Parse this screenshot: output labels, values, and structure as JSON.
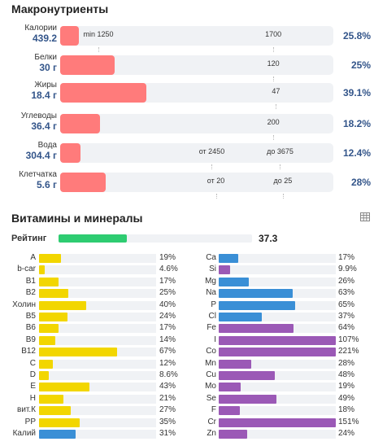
{
  "colors": {
    "macro_fill": "#ff7b7b",
    "rating_fill": "#2ecc71",
    "vitamin_fill": "#f2d600",
    "mineral_fill": "#3a8fd6",
    "trace_fill": "#9b59b6",
    "amount_text": "#33558a"
  },
  "macros": {
    "title": "Макронутриенты",
    "rows": [
      {
        "name": "Калории",
        "amount": "439.2",
        "fill_fraction": 0.068,
        "pct": "25.8%",
        "marks": [
          {
            "text": "min 1250",
            "pos": 0.14
          },
          {
            "text": "1700",
            "pos": 0.78
          }
        ]
      },
      {
        "name": "Белки",
        "amount": "30 г",
        "fill_fraction": 0.2,
        "pct": "25%",
        "marks": [
          {
            "text": "120",
            "pos": 0.78
          }
        ]
      },
      {
        "name": "Жиры",
        "amount": "18.4 г",
        "fill_fraction": 0.315,
        "pct": "39.1%",
        "marks": [
          {
            "text": "47",
            "pos": 0.79
          }
        ]
      },
      {
        "name": "Углеводы",
        "amount": "36.4 г",
        "fill_fraction": 0.145,
        "pct": "18.2%",
        "marks": [
          {
            "text": "200",
            "pos": 0.78
          }
        ]
      },
      {
        "name": "Вода",
        "amount": "304.4 г",
        "fill_fraction": 0.075,
        "pct": "12.4%",
        "marks": [
          {
            "text": "от 2450",
            "pos": 0.555
          },
          {
            "text": "до 3675",
            "pos": 0.805
          }
        ]
      },
      {
        "name": "Клетчатка",
        "amount": "5.6 г",
        "fill_fraction": 0.168,
        "pct": "28%",
        "marks": [
          {
            "text": "от 20",
            "pos": 0.57
          },
          {
            "text": "до 25",
            "pos": 0.815
          }
        ]
      }
    ]
  },
  "vitamins_minerals": {
    "title": "Витамины и минералы",
    "table_icon": "table-icon",
    "rating_label": "Рейтинг",
    "rating_value": "37.3",
    "rating_fraction": 0.373,
    "left": [
      {
        "label": "A",
        "pct": "19%",
        "value": 0.19,
        "kind": "vitamin"
      },
      {
        "label": "b-car",
        "pct": "4.6%",
        "value": 0.046,
        "kind": "vitamin"
      },
      {
        "label": "B1",
        "pct": "17%",
        "value": 0.17,
        "kind": "vitamin"
      },
      {
        "label": "B2",
        "pct": "25%",
        "value": 0.25,
        "kind": "vitamin"
      },
      {
        "label": "Холин",
        "pct": "40%",
        "value": 0.4,
        "kind": "vitamin"
      },
      {
        "label": "B5",
        "pct": "24%",
        "value": 0.24,
        "kind": "vitamin"
      },
      {
        "label": "B6",
        "pct": "17%",
        "value": 0.17,
        "kind": "vitamin"
      },
      {
        "label": "B9",
        "pct": "14%",
        "value": 0.14,
        "kind": "vitamin"
      },
      {
        "label": "B12",
        "pct": "67%",
        "value": 0.67,
        "kind": "vitamin"
      },
      {
        "label": "C",
        "pct": "12%",
        "value": 0.12,
        "kind": "vitamin"
      },
      {
        "label": "D",
        "pct": "8.6%",
        "value": 0.086,
        "kind": "vitamin"
      },
      {
        "label": "E",
        "pct": "43%",
        "value": 0.43,
        "kind": "vitamin"
      },
      {
        "label": "H",
        "pct": "21%",
        "value": 0.21,
        "kind": "vitamin"
      },
      {
        "label": "вит.К",
        "pct": "27%",
        "value": 0.27,
        "kind": "vitamin"
      },
      {
        "label": "PP",
        "pct": "35%",
        "value": 0.35,
        "kind": "vitamin"
      },
      {
        "label": "Калий",
        "pct": "31%",
        "value": 0.31,
        "kind": "mineral"
      }
    ],
    "right": [
      {
        "label": "Ca",
        "pct": "17%",
        "value": 0.17,
        "kind": "mineral"
      },
      {
        "label": "Si",
        "pct": "9.9%",
        "value": 0.099,
        "kind": "trace"
      },
      {
        "label": "Mg",
        "pct": "26%",
        "value": 0.26,
        "kind": "mineral"
      },
      {
        "label": "Na",
        "pct": "63%",
        "value": 0.63,
        "kind": "mineral"
      },
      {
        "label": "P",
        "pct": "65%",
        "value": 0.65,
        "kind": "mineral"
      },
      {
        "label": "Cl",
        "pct": "37%",
        "value": 0.37,
        "kind": "mineral"
      },
      {
        "label": "Fe",
        "pct": "64%",
        "value": 0.64,
        "kind": "trace"
      },
      {
        "label": "I",
        "pct": "107%",
        "value": 1.0,
        "kind": "trace"
      },
      {
        "label": "Co",
        "pct": "221%",
        "value": 1.0,
        "kind": "trace"
      },
      {
        "label": "Mn",
        "pct": "28%",
        "value": 0.28,
        "kind": "trace"
      },
      {
        "label": "Cu",
        "pct": "48%",
        "value": 0.48,
        "kind": "trace"
      },
      {
        "label": "Mo",
        "pct": "19%",
        "value": 0.19,
        "kind": "trace"
      },
      {
        "label": "Se",
        "pct": "49%",
        "value": 0.49,
        "kind": "trace"
      },
      {
        "label": "F",
        "pct": "18%",
        "value": 0.18,
        "kind": "trace"
      },
      {
        "label": "Cr",
        "pct": "151%",
        "value": 1.0,
        "kind": "trace"
      },
      {
        "label": "Zn",
        "pct": "24%",
        "value": 0.24,
        "kind": "trace"
      }
    ]
  }
}
